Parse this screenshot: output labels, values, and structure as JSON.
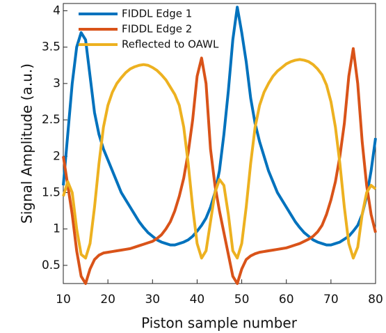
{
  "chart_data": {
    "type": "line",
    "xlabel": "Piston sample number",
    "ylabel": "Signal Amplitude (a.u.)",
    "x": [
      10,
      11,
      12,
      13,
      14,
      15,
      16,
      17,
      18,
      19,
      20,
      21,
      22,
      23,
      24,
      25,
      26,
      27,
      28,
      29,
      30,
      31,
      32,
      33,
      34,
      35,
      36,
      37,
      38,
      39,
      40,
      41,
      42,
      43,
      44,
      45,
      46,
      47,
      48,
      49,
      50,
      51,
      52,
      53,
      54,
      55,
      56,
      57,
      58,
      59,
      60,
      61,
      62,
      63,
      64,
      65,
      66,
      67,
      68,
      69,
      70,
      71,
      72,
      73,
      74,
      75,
      76,
      77,
      78,
      79,
      80
    ],
    "series": [
      {
        "name": "FIDDL Edge 1",
        "color": "#0072bd",
        "values": [
          1.6,
          2.3,
          3.0,
          3.5,
          3.7,
          3.6,
          3.1,
          2.6,
          2.3,
          2.1,
          1.95,
          1.8,
          1.65,
          1.5,
          1.4,
          1.3,
          1.2,
          1.1,
          1.02,
          0.95,
          0.9,
          0.85,
          0.82,
          0.8,
          0.78,
          0.78,
          0.8,
          0.82,
          0.85,
          0.9,
          0.97,
          1.05,
          1.15,
          1.3,
          1.5,
          1.8,
          2.3,
          2.9,
          3.6,
          4.05,
          3.7,
          3.3,
          2.8,
          2.45,
          2.2,
          2.0,
          1.8,
          1.65,
          1.5,
          1.4,
          1.3,
          1.2,
          1.1,
          1.02,
          0.95,
          0.9,
          0.85,
          0.82,
          0.8,
          0.78,
          0.78,
          0.8,
          0.82,
          0.86,
          0.9,
          0.97,
          1.05,
          1.2,
          1.45,
          1.8,
          2.25
        ]
      },
      {
        "name": "FIDDL Edge 2",
        "color": "#d95319",
        "values": [
          2.0,
          1.6,
          1.2,
          0.7,
          0.35,
          0.25,
          0.45,
          0.58,
          0.64,
          0.67,
          0.68,
          0.69,
          0.7,
          0.71,
          0.72,
          0.73,
          0.75,
          0.77,
          0.79,
          0.81,
          0.83,
          0.87,
          0.92,
          1.0,
          1.1,
          1.25,
          1.45,
          1.7,
          2.05,
          2.5,
          3.1,
          3.35,
          3.0,
          2.1,
          1.6,
          1.25,
          0.95,
          0.65,
          0.35,
          0.25,
          0.45,
          0.58,
          0.63,
          0.66,
          0.68,
          0.69,
          0.7,
          0.71,
          0.72,
          0.73,
          0.74,
          0.76,
          0.78,
          0.8,
          0.83,
          0.86,
          0.9,
          0.96,
          1.05,
          1.2,
          1.4,
          1.65,
          2.0,
          2.45,
          3.1,
          3.48,
          3.0,
          2.2,
          1.6,
          1.2,
          0.95
        ]
      },
      {
        "name": "Reflected to OAWL",
        "color": "#edb120",
        "values": [
          1.45,
          1.65,
          1.5,
          1.0,
          0.65,
          0.6,
          0.8,
          1.3,
          1.9,
          2.4,
          2.7,
          2.88,
          3.0,
          3.08,
          3.15,
          3.2,
          3.23,
          3.25,
          3.26,
          3.25,
          3.22,
          3.18,
          3.12,
          3.05,
          2.95,
          2.85,
          2.7,
          2.4,
          1.9,
          1.3,
          0.8,
          0.6,
          0.7,
          1.1,
          1.5,
          1.68,
          1.6,
          1.2,
          0.7,
          0.6,
          0.8,
          1.3,
          1.9,
          2.4,
          2.7,
          2.88,
          3.0,
          3.1,
          3.17,
          3.22,
          3.27,
          3.3,
          3.32,
          3.33,
          3.32,
          3.3,
          3.26,
          3.2,
          3.12,
          2.98,
          2.75,
          2.4,
          1.9,
          1.3,
          0.8,
          0.6,
          0.75,
          1.2,
          1.5,
          1.6,
          1.55
        ]
      }
    ],
    "xlim": [
      10,
      80
    ],
    "xticks": [
      10,
      20,
      30,
      40,
      50,
      60,
      70,
      80
    ],
    "ylim": [
      0.25,
      4.1
    ],
    "yticks": [
      0.5,
      1,
      1.5,
      2,
      2.5,
      3,
      3.5,
      4
    ],
    "grid": false,
    "legend": "upper left"
  }
}
